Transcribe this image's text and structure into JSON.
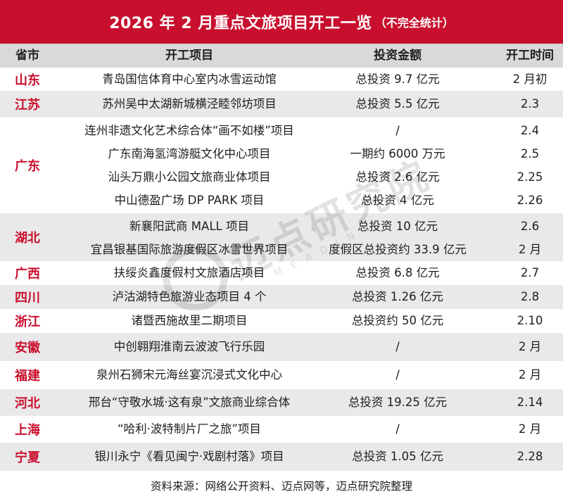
{
  "title": {
    "main": "2026 年 2 月重点文旅项目开工一览",
    "sub": "（不完全统计）"
  },
  "header": {
    "province": "省市",
    "project": "开工项目",
    "amount": "投资金额",
    "time": "开工时间"
  },
  "groups": [
    {
      "province": "山东",
      "rows": [
        {
          "project": "青岛国信体育中心室内冰雪运动馆",
          "amount": "总投资 9.7 亿元",
          "time": "2 月初"
        }
      ]
    },
    {
      "province": "江苏",
      "rows": [
        {
          "project": "苏州吴中太湖新城横泾睦邻坊项目",
          "amount": "总投资 5.5 亿元",
          "time": "2.3"
        }
      ]
    },
    {
      "province": "广东",
      "rows": [
        {
          "project": "连州非遗文化艺术综合体“画不如楼”项目",
          "amount": "/",
          "time": "2.4"
        },
        {
          "project": "广东南海氢湾游艇文化中心项目",
          "amount": "一期约 6000 万元",
          "time": "2.5"
        },
        {
          "project": "汕头万鼎小公园文旅商业体项目",
          "amount": "总投资 2.6 亿元",
          "time": "2.25"
        },
        {
          "project": "中山德盈广场 DP PARK 项目",
          "amount": "总投资 4 亿元",
          "time": "2.26"
        }
      ]
    },
    {
      "province": "湖北",
      "rows": [
        {
          "project": "新襄阳武商 MALL 项目",
          "amount": "总投资 10 亿元",
          "time": "2.6"
        },
        {
          "project": "宜昌银基国际旅游度假区冰雪世界项目",
          "amount": "度假区总投资约 33.9 亿元",
          "time": "2 月"
        }
      ]
    },
    {
      "province": "广西",
      "rows": [
        {
          "project": "扶绥炎鑫度假村文旅酒店项目",
          "amount": "总投资 6.8 亿元",
          "time": "2.7"
        }
      ]
    },
    {
      "province": "四川",
      "rows": [
        {
          "project": "泸沽湖特色旅游业态项目 4 个",
          "amount": "总投资 1.26 亿元",
          "time": "2.8"
        }
      ]
    },
    {
      "province": "浙江",
      "rows": [
        {
          "project": "诸暨西施故里二期项目",
          "amount": "总投资约 50 亿元",
          "time": "2.10"
        }
      ]
    },
    {
      "province": "安徽",
      "rows": [
        {
          "project": "中创翱翔淮南云波波飞行乐园",
          "amount": "/",
          "time": "2 月"
        }
      ]
    },
    {
      "province": "福建",
      "rows": [
        {
          "project": "泉州石狮宋元海丝宴沉浸式文化中心",
          "amount": "/",
          "time": "2 月"
        }
      ]
    },
    {
      "province": "河北",
      "rows": [
        {
          "project": "邢台“守敬水城·这有泉”文旅商业综合体",
          "amount": "总投资 19.25 亿元",
          "time": "2.14"
        }
      ]
    },
    {
      "province": "上海",
      "rows": [
        {
          "project": "“哈利·波特制片厂之旅”项目",
          "amount": "/",
          "time": "2 月"
        }
      ]
    },
    {
      "province": "宁夏",
      "rows": [
        {
          "project": "银川永宁《看见闽宁·戏剧村落》项目",
          "amount": "总投资 1.05 亿元",
          "time": "2.28"
        }
      ]
    }
  ],
  "footer": "资料来源：网络公开资料、迈点网等，迈点研究院整理",
  "watermark": {
    "cn": "迈点研究院",
    "en": "MEADIN"
  },
  "colors": {
    "accent": "#c8102e",
    "header_bg": "#d9d9d9",
    "shade_bg": "#e9e9e9"
  }
}
